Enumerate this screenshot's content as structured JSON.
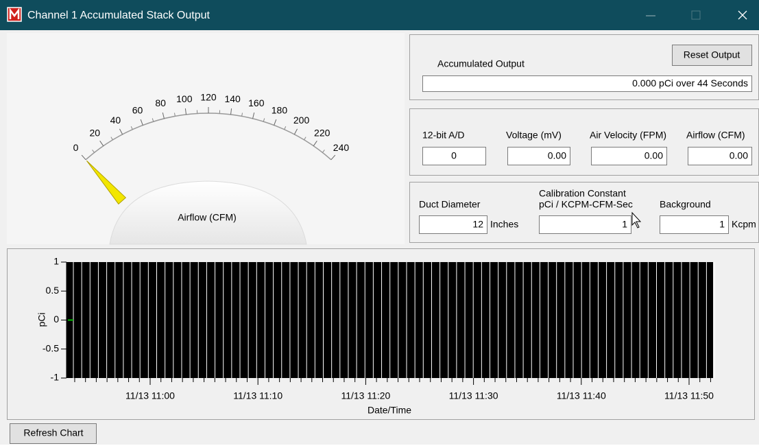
{
  "window": {
    "title": "Channel 1 Accumulated Stack Output"
  },
  "gauge": {
    "label": "Airflow (CFM)",
    "scale": [
      0,
      20,
      40,
      60,
      80,
      100,
      120,
      140,
      160,
      180,
      200,
      220,
      240
    ],
    "value": 0
  },
  "accumulated": {
    "label": "Accumulated Output",
    "value": "0.000 pCi  over 44 Seconds",
    "reset_button": "Reset Output"
  },
  "readings": [
    {
      "label": "12-bit A/D",
      "value": "0"
    },
    {
      "label": "Voltage (mV)",
      "value": "0.00"
    },
    {
      "label": "Air Velocity (FPM)",
      "value": "0.00"
    },
    {
      "label": "Airflow (CFM)",
      "value": "0.00"
    }
  ],
  "settings": {
    "duct": {
      "label": "Duct Diameter",
      "value": "12",
      "unit": "Inches"
    },
    "calibration": {
      "label": "Calibration Constant",
      "sublabel": "pCi / KCPM-CFM-Sec",
      "value": "1"
    },
    "background": {
      "label": "Background",
      "value": "1",
      "unit": "Kcpm"
    }
  },
  "chart": {
    "ylabel": "pCi",
    "xlabel": "Date/Time",
    "ylim": [
      -1,
      1
    ],
    "yticks": [
      1,
      0.5,
      0,
      -0.5,
      -1
    ],
    "xticks": [
      "11/13 11:00",
      "11/13 11:10",
      "11/13 11:20",
      "11/13 11:30",
      "11/13 11:40",
      "11/13 11:50"
    ],
    "color": "#00c000",
    "values": [
      0
    ]
  },
  "refresh_button": "Refresh Chart"
}
